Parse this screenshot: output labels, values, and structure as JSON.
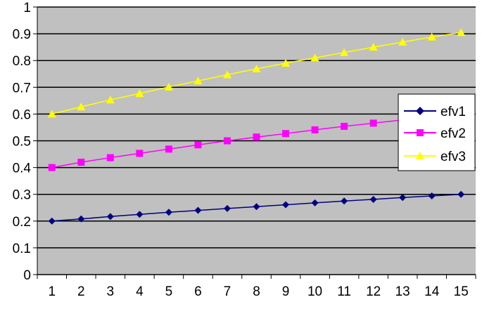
{
  "chart_data": {
    "type": "line",
    "title": "",
    "xlabel": "",
    "ylabel": "",
    "x": [
      1,
      2,
      3,
      4,
      5,
      6,
      7,
      8,
      9,
      10,
      11,
      12,
      13,
      14,
      15
    ],
    "xlim": [
      0.5,
      15.5
    ],
    "ylim": [
      0,
      1
    ],
    "yticks": [
      "0",
      "0.1",
      "0.2",
      "0.3",
      "0.4",
      "0.5",
      "0.6",
      "0.7",
      "0.8",
      "0.9",
      "1"
    ],
    "xticks": [
      "1",
      "2",
      "3",
      "4",
      "5",
      "6",
      "7",
      "8",
      "9",
      "10",
      "11",
      "12",
      "13",
      "14",
      "15"
    ],
    "grid": true,
    "plot_background": "#c0c0c0",
    "legend_placement": "right",
    "series": [
      {
        "name": "efv1",
        "color": "#000080",
        "marker": "diamond",
        "values": [
          0.2,
          0.208,
          0.217,
          0.225,
          0.233,
          0.24,
          0.247,
          0.254,
          0.261,
          0.268,
          0.275,
          0.281,
          0.288,
          0.294,
          0.3
        ]
      },
      {
        "name": "efv2",
        "color": "#ff00ff",
        "marker": "square",
        "values": [
          0.4,
          0.42,
          0.437,
          0.453,
          0.469,
          0.485,
          0.5,
          0.514,
          0.527,
          0.541,
          0.554,
          0.566,
          0.578,
          0.589,
          0.6
        ]
      },
      {
        "name": "efv3",
        "color": "#ffff00",
        "marker": "triangle",
        "values": [
          0.6,
          0.627,
          0.653,
          0.677,
          0.701,
          0.724,
          0.747,
          0.769,
          0.79,
          0.81,
          0.83,
          0.85,
          0.869,
          0.888,
          0.905
        ]
      }
    ]
  }
}
